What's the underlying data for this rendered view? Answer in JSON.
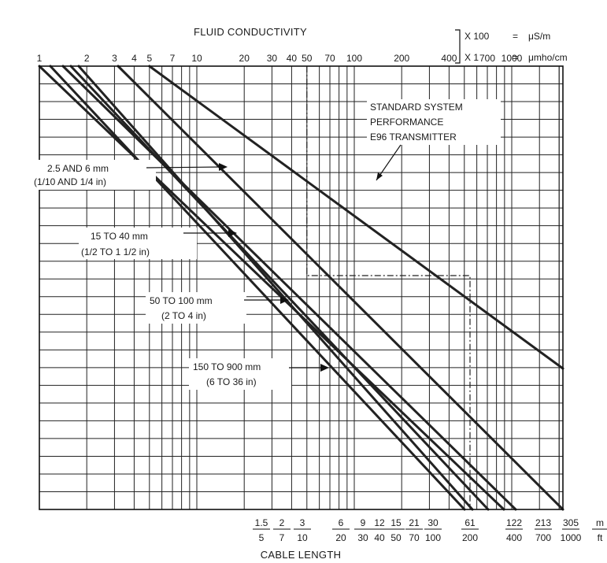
{
  "chart_data": {
    "type": "line",
    "title": "FLUID CONDUCTIVITY",
    "xlabel": "CABLE LENGTH",
    "x_scale": "log",
    "y_scale": "log",
    "x_range_top": [
      1,
      2000
    ],
    "top_axis_ticks": [
      {
        "value": 1,
        "label": "1"
      },
      {
        "value": 2,
        "label": "2"
      },
      {
        "value": 3,
        "label": "3"
      },
      {
        "value": 4,
        "label": "4"
      },
      {
        "value": 5,
        "label": "5"
      },
      {
        "value": 7,
        "label": "7"
      },
      {
        "value": 10,
        "label": "10"
      },
      {
        "value": 20,
        "label": "20"
      },
      {
        "value": 30,
        "label": "30"
      },
      {
        "value": 40,
        "label": "40"
      },
      {
        "value": 50,
        "label": "50"
      },
      {
        "value": 70,
        "label": "70"
      },
      {
        "value": 100,
        "label": "100"
      },
      {
        "value": 200,
        "label": "200"
      },
      {
        "value": 400,
        "label": "400"
      },
      {
        "value": 700,
        "label": "700"
      },
      {
        "value": 1000,
        "label": "1000"
      }
    ],
    "units": {
      "row1": {
        "multiplier": "X 100",
        "eq": "=",
        "unit": "μS/m"
      },
      "row2": {
        "multiplier": "X 1",
        "eq": "=",
        "unit": "μmho/cm"
      }
    },
    "bottom_axis_ticks": [
      {
        "m": "1.5",
        "ft": "5"
      },
      {
        "m": "2",
        "ft": "7"
      },
      {
        "m": "3",
        "ft": "10"
      },
      {
        "m": "6",
        "ft": "20"
      },
      {
        "m": "9",
        "ft": "30"
      },
      {
        "m": "12",
        "ft": "40"
      },
      {
        "m": "15",
        "ft": "50"
      },
      {
        "m": "21",
        "ft": "70"
      },
      {
        "m": "30",
        "ft": "100"
      },
      {
        "m": "61",
        "ft": "200"
      },
      {
        "m": "122",
        "ft": "400"
      },
      {
        "m": "213",
        "ft": "700"
      },
      {
        "m": "305",
        "ft": "1000"
      }
    ],
    "bottom_unit": {
      "m": "m",
      "ft": "ft"
    },
    "series": [
      {
        "name": "STANDARD SYSTEM PERFORMANCE E96 TRANSMITTER",
        "x_top": [
          5,
          2000
        ]
      },
      {
        "name": "2.5 AND 6 mm (1/10 AND 1/4 in)",
        "x_top": [
          1,
          1000
        ]
      },
      {
        "name": "15 TO 40 mm (1/2 TO 1 1/2 in)",
        "x_top": [
          1.5,
          700
        ]
      },
      {
        "name": "50 TO 100 mm (2 TO 4 in)",
        "x_top": [
          1.8,
          600
        ]
      },
      {
        "name": "150 TO 900 mm (6 TO 36 in)",
        "x_top": [
          2,
          500
        ]
      }
    ],
    "example_guide": {
      "conductivity": 50,
      "cable_length_m": 61
    }
  },
  "labels": {
    "standard": [
      "STANDARD SYSTEM",
      "PERFORMANCE",
      "E96 TRANSMITTER"
    ],
    "size1": [
      "2.5 AND 6 mm",
      "(1/10 AND 1/4 in)"
    ],
    "size2": [
      "15 TO 40 mm",
      "(1/2 TO 1 1/2 in)"
    ],
    "size3": [
      "50 TO 100 mm",
      "(2 TO 4 in)"
    ],
    "size4": [
      "150 TO 900 mm",
      "(6 TO 36 in)"
    ]
  }
}
